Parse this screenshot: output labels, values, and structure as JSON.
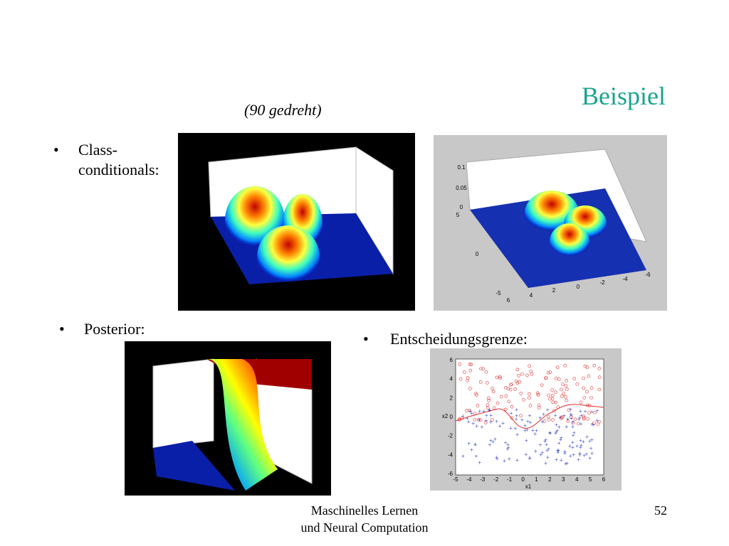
{
  "title": "Beispiel",
  "note": "(90 gedreht)",
  "bullets": [
    {
      "symbol": "•",
      "lines": [
        "Class-",
        "conditionals:"
      ]
    },
    {
      "symbol": "•",
      "lines": [
        "Posterior:"
      ]
    },
    {
      "symbol": "•",
      "lines": [
        "Entscheidungsgrenze:"
      ]
    }
  ],
  "figures": {
    "class_conditional_plot": {
      "z_ticks": [
        "0.1",
        "0.05",
        "0"
      ],
      "y_ticks": [
        "5",
        "0",
        "-5"
      ],
      "x_ticks": [
        "6",
        "4",
        "2",
        "0",
        "-2",
        "-4",
        "-6"
      ]
    },
    "decision_plot": {
      "y_ticks": [
        "6",
        "4",
        "2",
        "0",
        "-2",
        "-4",
        "-6"
      ],
      "x_ticks": [
        "-5",
        "-4",
        "-3",
        "-2",
        "-1",
        "0",
        "1",
        "2",
        "3",
        "4",
        "5",
        "6"
      ],
      "x_label": "x1",
      "y_label": "x2"
    }
  },
  "footer": {
    "lines": [
      "Maschinelles Lernen",
      "und Neural Computation"
    ],
    "page": "52"
  }
}
